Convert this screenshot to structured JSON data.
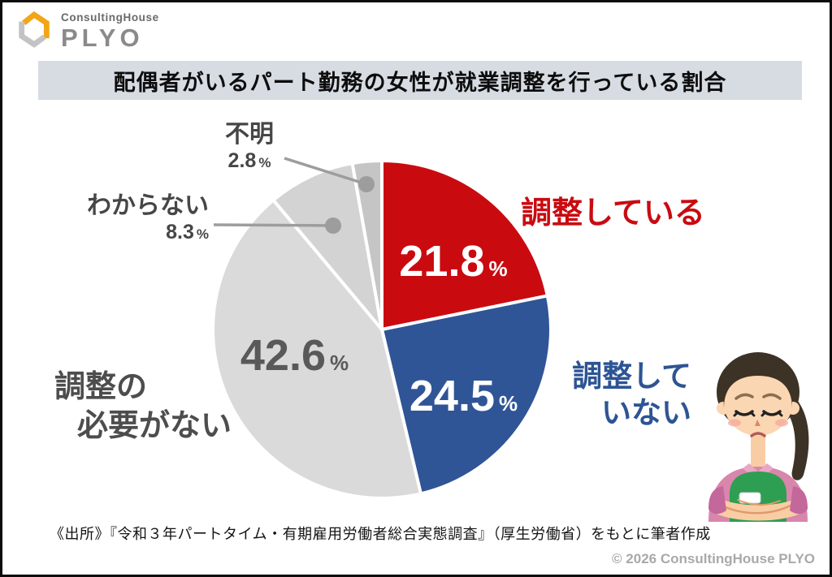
{
  "brand": {
    "top_text": "ConsultingHouse",
    "name": "PLYO"
  },
  "title_bar": {
    "text": "配偶者がいるパート勤務の女性が就業調整を行っている割合"
  },
  "chart_data": {
    "type": "pie",
    "title": "配偶者がいるパート勤務の女性が就業調整を行っている割合",
    "unit": "%",
    "legend_position": "callouts-around-pie",
    "start_angle": "12-oclock-clockwise",
    "slices": [
      {
        "label": "調整している",
        "value": 21.8,
        "color": "#c90b10",
        "label_color": "#c90b11",
        "value_text_color": "#ffffff"
      },
      {
        "label": "調整していない",
        "lines": [
          "調整して",
          "いない"
        ],
        "value": 24.5,
        "color": "#2f5597",
        "label_color": "#2d5494",
        "value_text_color": "#ffffff"
      },
      {
        "label": "調整の必要がない",
        "lines": [
          "調整の",
          "必要がない"
        ],
        "value": 42.6,
        "color": "#dadada",
        "label_color": "#4d4d4d",
        "value_text_color": "#595959"
      },
      {
        "label": "わからない",
        "value": 8.3,
        "color": "#d3d3d3",
        "label_color": "#464646"
      },
      {
        "label": "不明",
        "value": 2.8,
        "color": "#c5c5c5",
        "label_color": "#464646"
      }
    ]
  },
  "illustration": {
    "name": "worried-woman-in-green-apron"
  },
  "footer": {
    "source": "《出所》『令和３年パートタイム・有期雇用労働者総合実態調査』（厚生労働省）をもとに筆者作成",
    "copyright": "© 2026 ConsultingHouse PLYO"
  },
  "colors": {
    "title_bar_bg": "#d7dce3",
    "accent_red": "#c90b10",
    "accent_blue": "#2f5597",
    "leader_line": "#9d9d9d",
    "logo_orange": "#f2a516",
    "logo_gray": "#c3c3c3"
  }
}
